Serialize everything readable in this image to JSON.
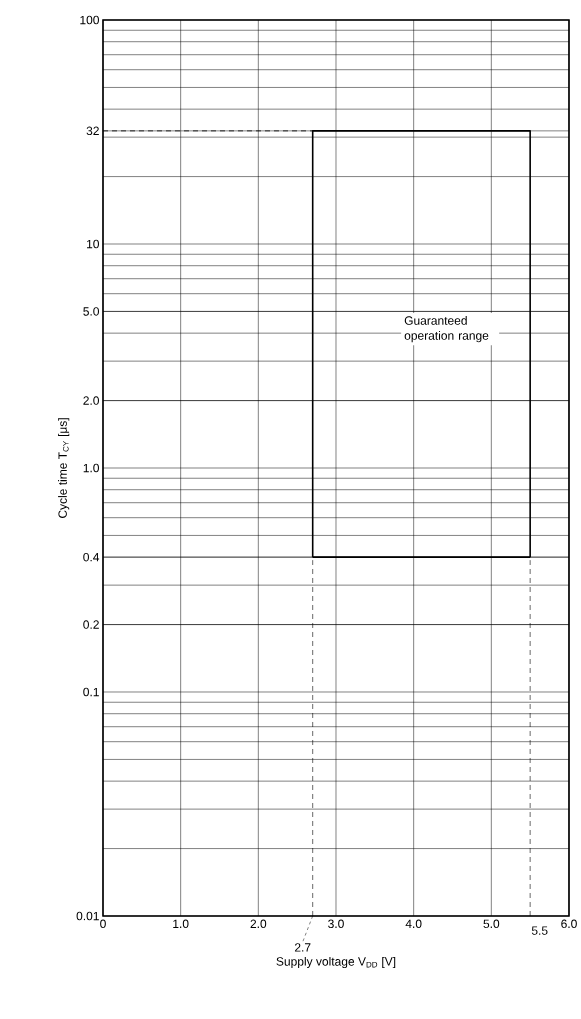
{
  "chart_data": {
    "type": "line",
    "xlabel": "Supply voltage  V$_{DD}$  [V]",
    "ylabel": "Cycle time  T$_{CY}$  [μs]",
    "annotations": [
      "Guaranteed operation range"
    ],
    "series": [
      {
        "color": "#000000",
        "x": [
          2.7,
          2.7,
          5.5,
          5.5
        ],
        "values": [
          0.4,
          32,
          32,
          0.4
        ]
      },
      {
        "color": "#000000",
        "x": [
          2.7,
          5.5
        ],
        "values": [
          0.4,
          0.4
        ]
      },
      {
        "color": "#000000",
        "x": [
          0,
          2.7
        ],
        "values": [
          32,
          32
        ],
        "line_style": "dashed"
      }
    ],
    "xlim": [
      0,
      6
    ],
    "xticks": [
      0,
      {
        "value": 1,
        "label": "1.0"
      },
      {
        "value": 2,
        "label": "2.0"
      },
      {
        "value": 3,
        "label": "3.0"
      },
      {
        "value": 4,
        "label": "4.0"
      },
      {
        "value": 5,
        "label": "5.0"
      },
      {
        "value": 6,
        "label": "6.0"
      }
    ],
    "ylim": [
      0.01,
      100
    ],
    "yticks": [
      0.01,
      0.1,
      0.2,
      0.4,
      {
        "value": 1,
        "label": "1.0"
      },
      {
        "value": 2,
        "label": "2.0"
      },
      {
        "value": 5,
        "label": "5.0"
      },
      10,
      32,
      100
    ],
    "log": "y",
    "grid": true,
    "marker": "none",
    "line_style": "solid",
    "ref_lines": [
      {
        "axis": "x",
        "value": 2.7,
        "label": "2.7",
        "line_style": "dashed"
      },
      {
        "axis": "x",
        "value": 5.5,
        "label": "5.5",
        "line_style": "dashed"
      }
    ]
  }
}
